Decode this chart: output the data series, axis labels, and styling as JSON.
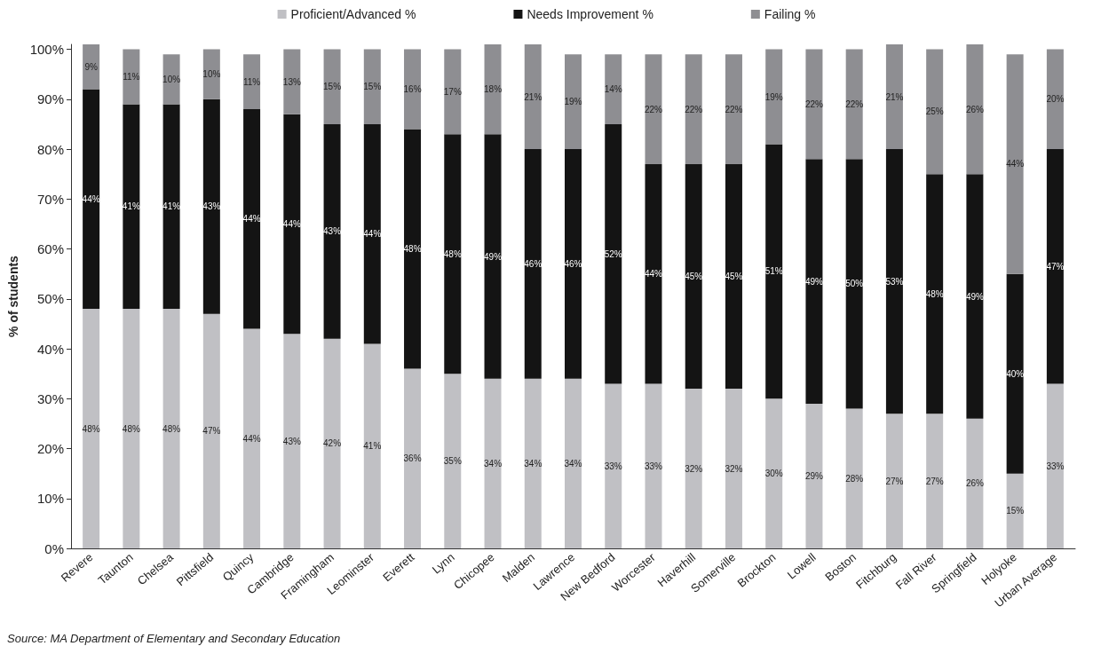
{
  "chart_data": {
    "type": "bar",
    "stacked": true,
    "ylabel": "% of students",
    "categories": [
      "Revere",
      "Taunton",
      "Chelsea",
      "Pittsfield",
      "Quincy",
      "Cambridge",
      "Framingham",
      "Leominster",
      "Everett",
      "Lynn",
      "Chicopee",
      "Malden",
      "Lawrence",
      "New Bedford",
      "Worcester",
      "Haverhill",
      "Somerville",
      "Brockton",
      "Lowell",
      "Boston",
      "Fitchburg",
      "Fall River",
      "Springfield",
      "Holyoke",
      "Urban Average"
    ],
    "series": [
      {
        "name": "Proficient/Advanced %",
        "color": "#c0c0c4",
        "values": [
          48,
          48,
          48,
          47,
          44,
          43,
          42,
          41,
          36,
          35,
          34,
          34,
          34,
          33,
          33,
          32,
          32,
          30,
          29,
          28,
          27,
          27,
          26,
          15,
          33
        ],
        "value_labels": [
          "48%",
          "48%",
          "48%",
          "47%",
          "44%",
          "43%",
          "42%",
          "41%",
          "36%",
          "35%",
          "34%",
          "34%",
          "34%",
          "33%",
          "33%",
          "32%",
          "32%",
          "30%",
          "29%",
          "28%",
          "27%",
          "27%",
          "26%",
          "15%",
          "33%"
        ]
      },
      {
        "name": "Needs Improvement %",
        "color": "#141414",
        "values": [
          44,
          41,
          41,
          43,
          44,
          44,
          43,
          44,
          48,
          48,
          49,
          46,
          46,
          52,
          44,
          45,
          45,
          51,
          49,
          50,
          53,
          48,
          49,
          40,
          47
        ],
        "value_labels": [
          "44%",
          "41%",
          "41%",
          "43%",
          "44%",
          "44%",
          "43%",
          "44%",
          "48%",
          "48%",
          "49%",
          "46%",
          "46%",
          "52%",
          "44%",
          "45%",
          "45%",
          "51%",
          "49%",
          "50%",
          "53%",
          "48%",
          "49%",
          "40%",
          "47%"
        ]
      },
      {
        "name": "Failing %",
        "color": "#8e8e92",
        "values": [
          9,
          11,
          10,
          10,
          11,
          13,
          15,
          15,
          16,
          17,
          18,
          21,
          19,
          14,
          22,
          22,
          22,
          19,
          22,
          22,
          21,
          25,
          26,
          44,
          20
        ],
        "value_labels": [
          "9%",
          "11%",
          "10%",
          "10%",
          "11%",
          "13%",
          "15%",
          "15%",
          "16%",
          "17%",
          "18%",
          "21%",
          "19%",
          "14%",
          "22%",
          "22%",
          "22%",
          "19%",
          "22%",
          "22%",
          "21%",
          "25%",
          "26%",
          "44%",
          "20%"
        ]
      }
    ],
    "ylim": [
      0,
      101
    ],
    "yticks": [
      {
        "value": 0,
        "label": "0%"
      },
      {
        "value": 10,
        "label": "10%"
      },
      {
        "value": 20,
        "label": "20%"
      },
      {
        "value": 30,
        "label": "30%"
      },
      {
        "value": 40,
        "label": "40%"
      },
      {
        "value": 50,
        "label": "50%"
      },
      {
        "value": 60,
        "label": "60%"
      },
      {
        "value": 70,
        "label": "70%"
      },
      {
        "value": 80,
        "label": "80%"
      },
      {
        "value": 90,
        "label": "90%"
      },
      {
        "value": 100,
        "label": "100%"
      }
    ],
    "grid": false,
    "legend": "top",
    "annotations": [
      "Source: MA Department of Elementary and Secondary Education"
    ]
  }
}
